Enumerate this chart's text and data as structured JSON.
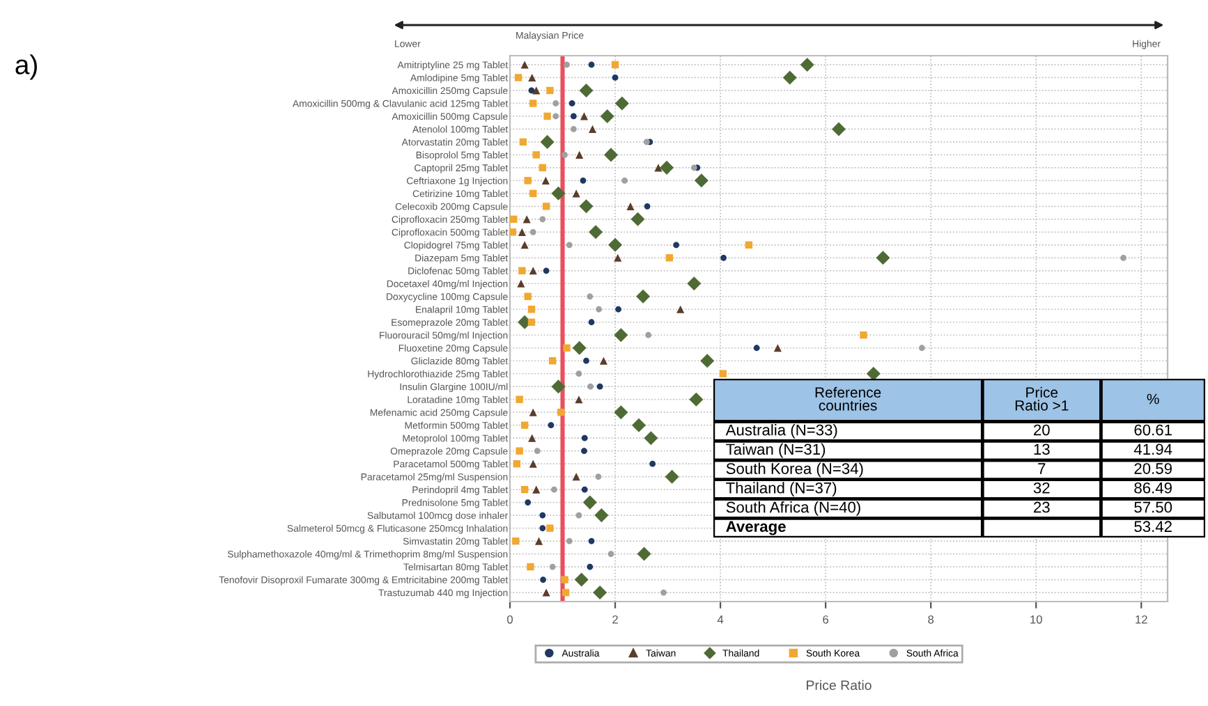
{
  "chart_data": [
    {
      "type": "scatter",
      "xlabel": "Price Ratio",
      "annotations": [
        "a)",
        "Lower",
        "Malaysian Price",
        "Higher"
      ],
      "orientation": "horizontal",
      "categories": [
        "Amitriptyline 25 mg Tablet",
        "Amlodipine 5mg Tablet",
        "Amoxicillin 250mg Capsule",
        "Amoxicillin 500mg & Clavulanic acid 125mg Tablet",
        "Amoxicillin 500mg Capsule",
        "Atenolol 100mg Tablet",
        "Atorvastatin 20mg Tablet",
        "Bisoprolol 5mg Tablet",
        "Captopril 25mg Tablet",
        "Ceftriaxone 1g Injection",
        "Cetirizine 10mg Tablet",
        "Celecoxib 200mg Capsule",
        "Ciprofloxacin 250mg Tablet",
        "Ciprofloxacin 500mg Tablet",
        "Clopidogrel 75mg Tablet",
        "Diazepam 5mg Tablet",
        "Diclofenac 50mg Tablet",
        "Docetaxel 40mg/ml Injection",
        "Doxycycline 100mg Capsule",
        "Enalapril 10mg Tablet",
        "Esomeprazole 20mg Tablet",
        "Fluorouracil 50mg/ml Injection",
        "Fluoxetine 20mg Capsule",
        "Gliclazide 80mg Tablet",
        "Hydrochlorothiazide 25mg Tablet",
        "Insulin Glargine 100IU/ml",
        "Loratadine 10mg Tablet",
        "Mefenamic acid 250mg Capsule",
        "Metformin 500mg Tablet",
        "Metoprolol 100mg Tablet",
        "Omeprazole 20mg Capsule",
        "Paracetamol 500mg Tablet",
        "Paracetamol 25mg/ml Suspension",
        "Perindopril 4mg Tablet",
        "Prednisolone 5mg Tablet",
        "Salbutamol 100mcg dose inhaler",
        "Salmeterol 50mcg & Fluticasone 250mcg Inhalation",
        "Simvastatin 20mg Tablet",
        "Sulphamethoxazole 40mg/ml & Trimethoprim 8mg/ml Suspension",
        "Telmisartan 80mg Tablet",
        "Tenofovir Disoproxil Fumarate 300mg & Emtricitabine 200mg Tablet",
        "Trastuzumab 440 mg Injection"
      ],
      "series": [
        {
          "name": "Australia",
          "color": "#1f3864",
          "marker": "circle",
          "values": [
            1.55,
            2.0,
            0.41,
            1.18,
            1.21,
            null,
            2.66,
            null,
            3.56,
            1.39,
            null,
            2.61,
            null,
            null,
            3.16,
            4.06,
            0.69,
            null,
            null,
            2.06,
            1.55,
            null,
            4.69,
            1.45,
            null,
            1.71,
            null,
            null,
            0.78,
            1.42,
            1.41,
            2.71,
            null,
            1.42,
            0.34,
            0.62,
            0.62,
            1.55,
            null,
            1.52,
            0.63,
            null
          ]
        },
        {
          "name": "Taiwan",
          "color": "#5a3d2b",
          "marker": "triangle",
          "values": [
            0.28,
            0.42,
            0.5,
            null,
            1.41,
            1.57,
            null,
            1.32,
            2.82,
            0.68,
            1.26,
            2.29,
            0.32,
            0.23,
            0.28,
            2.05,
            0.44,
            0.21,
            null,
            3.24,
            null,
            null,
            5.09,
            1.78,
            null,
            null,
            1.31,
            0.44,
            null,
            0.42,
            null,
            0.44,
            1.26,
            0.5,
            null,
            null,
            null,
            0.55,
            null,
            null,
            null,
            0.69
          ]
        },
        {
          "name": "Thailand",
          "color": "#4e6b35",
          "marker": "diamond",
          "values": [
            5.65,
            5.32,
            1.45,
            2.13,
            1.85,
            6.25,
            0.71,
            1.92,
            2.98,
            3.64,
            0.92,
            1.45,
            2.43,
            1.63,
            2.0,
            7.09,
            null,
            3.5,
            2.53,
            null,
            0.28,
            2.11,
            1.32,
            3.75,
            6.91,
            0.92,
            3.54,
            2.11,
            2.45,
            2.68,
            null,
            null,
            3.08,
            null,
            1.52,
            1.74,
            null,
            null,
            2.55,
            null,
            1.36,
            1.71
          ]
        },
        {
          "name": "South Korea",
          "color": "#f0a830",
          "marker": "square",
          "values": [
            2.0,
            0.16,
            0.76,
            0.44,
            0.71,
            null,
            0.25,
            0.5,
            0.62,
            0.34,
            0.44,
            0.69,
            0.07,
            0.05,
            4.54,
            3.03,
            0.23,
            null,
            0.34,
            0.41,
            0.41,
            6.72,
            1.08,
            0.81,
            4.05,
            null,
            0.18,
            0.97,
            0.28,
            null,
            0.18,
            0.13,
            null,
            0.28,
            null,
            null,
            0.76,
            0.11,
            null,
            0.39,
            1.04,
            1.06
          ]
        },
        {
          "name": "South Africa",
          "color": "#a0a0a0",
          "marker": "circle",
          "values": [
            1.08,
            null,
            null,
            0.87,
            0.87,
            1.21,
            2.6,
            1.04,
            3.5,
            2.18,
            null,
            null,
            0.62,
            0.44,
            1.13,
            11.66,
            null,
            null,
            1.52,
            1.69,
            null,
            2.63,
            7.83,
            null,
            1.31,
            1.53,
            null,
            null,
            null,
            null,
            0.52,
            null,
            1.68,
            0.84,
            null,
            1.31,
            null,
            1.13,
            1.92,
            0.81,
            null,
            2.92
          ]
        }
      ],
      "xlim": [
        0,
        12.5
      ],
      "xticks": [
        0,
        2,
        4,
        6,
        8,
        10,
        12
      ],
      "ref_lines": [
        {
          "axis": "x",
          "value": 1,
          "color": "#e8505b"
        }
      ],
      "grid": true,
      "legend": "bottom"
    },
    {
      "type": "other",
      "title": "Reference countries",
      "categories": [
        "Australia (N=33)",
        "Taiwan (N=31)",
        "South Korea (N=34)",
        "Thailand (N=37)",
        "South Africa (N=40)",
        "Average"
      ],
      "series": [
        {
          "name": "Price Ratio >1",
          "values": [
            20,
            13,
            7,
            32,
            23,
            null
          ],
          "value_labels": [
            "20",
            "13",
            "7",
            "32",
            "23",
            null
          ]
        },
        {
          "name": "%",
          "values": [
            60.61,
            41.94,
            20.59,
            86.49,
            57.5,
            53.42
          ],
          "value_labels": [
            "60.61",
            "41.94",
            "20.59",
            "86.49",
            "57.50",
            "53.42"
          ]
        }
      ]
    }
  ]
}
